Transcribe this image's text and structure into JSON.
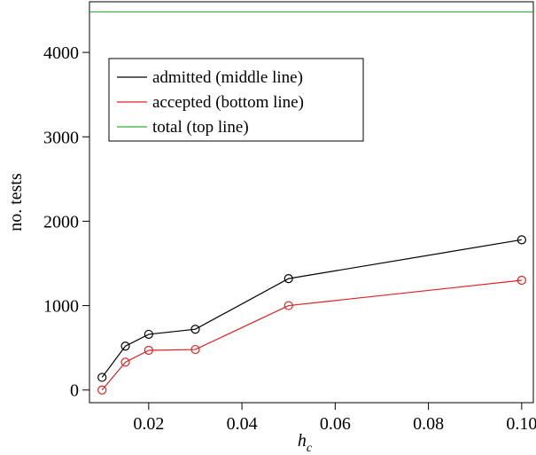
{
  "chart_data": {
    "type": "line",
    "xlabel": "h",
    "xlabel_subscript": "c",
    "ylabel": "no. tests",
    "xlim": [
      0.0073,
      0.1025
    ],
    "ylim": [
      -150,
      4600
    ],
    "xticks": [
      0.02,
      0.04,
      0.06,
      0.08,
      0.1
    ],
    "xtick_labels": [
      "0.02",
      "0.04",
      "0.06",
      "0.08",
      "0.10"
    ],
    "yticks": [
      0,
      1000,
      2000,
      3000,
      4000
    ],
    "ytick_labels": [
      "0",
      "1000",
      "2000",
      "3000",
      "4000"
    ],
    "legend_position": "upper-left",
    "series": [
      {
        "name": "admitted (middle line)",
        "color": "#000000",
        "x": [
          0.01,
          0.015,
          0.02,
          0.03,
          0.05,
          0.1
        ],
        "values": [
          150,
          520,
          660,
          720,
          1320,
          1780
        ],
        "markers": true
      },
      {
        "name": "accepted (bottom line)",
        "color": "#e02020",
        "x": [
          0.01,
          0.015,
          0.02,
          0.03,
          0.05,
          0.1
        ],
        "values": [
          0,
          330,
          470,
          480,
          1000,
          1300
        ],
        "markers": true
      },
      {
        "name": "total (top line)",
        "color": "#33b033",
        "type": "hline",
        "value": 4480,
        "markers": false
      }
    ]
  }
}
